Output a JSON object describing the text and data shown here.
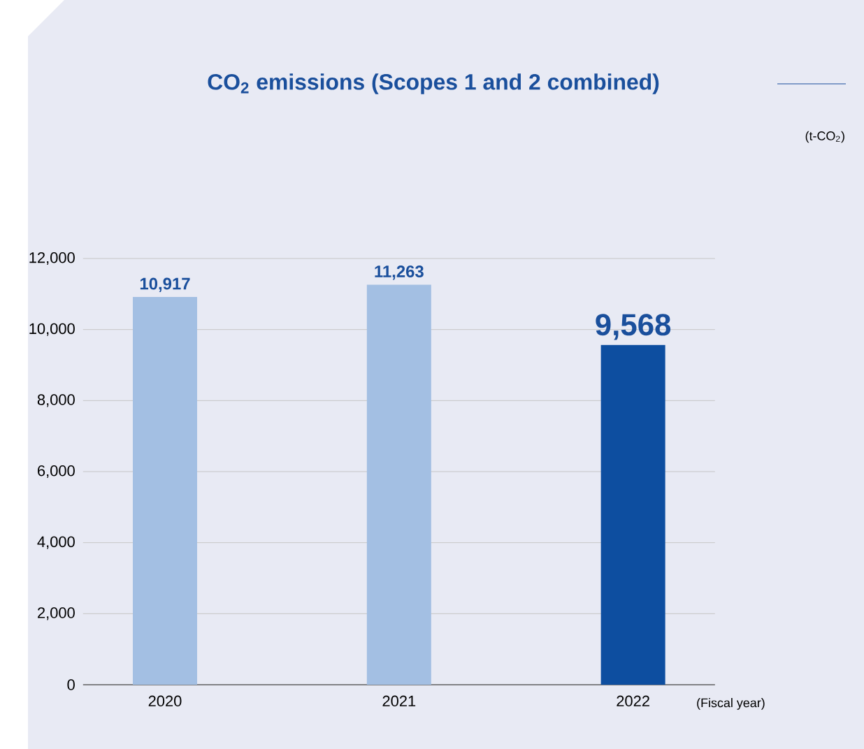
{
  "chart_data": {
    "type": "bar",
    "title": "CO$_{2}$ emissions (Scopes 1 and 2 combined)",
    "subtitle": "(t-CO$_{2}$)",
    "xlabel": "(Fiscal year)",
    "categories": [
      "2020",
      "2021",
      "2022"
    ],
    "values": [
      10917,
      11263,
      9568
    ],
    "colors": [
      "#a3bfe3",
      "#a3bfe3",
      "#0d4ea0"
    ],
    "value_labels": [
      "10,917",
      "11,263",
      "9,568"
    ],
    "ylim": [
      0,
      12000
    ],
    "yticks": [
      {
        "value": 0,
        "label": "0"
      },
      {
        "value": 2000,
        "label": "2,000"
      },
      {
        "value": 4000,
        "label": "4,000"
      },
      {
        "value": 6000,
        "label": "6,000"
      },
      {
        "value": 8000,
        "label": "8,000"
      },
      {
        "value": 10000,
        "label": "10,000"
      },
      {
        "value": 12000,
        "label": "12,000"
      }
    ],
    "grid": "y"
  }
}
